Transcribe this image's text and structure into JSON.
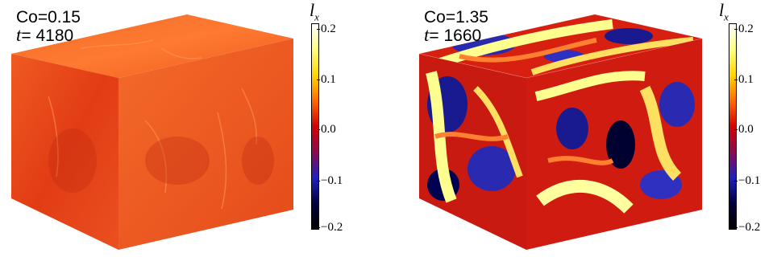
{
  "panels": [
    {
      "co_label": "Co=0.15",
      "time_var": "t",
      "time_value": "= 4180",
      "colorbar_title": "l",
      "colorbar_sub": "x",
      "ticks": [
        "0.2",
        "0.1",
        "0.0",
        "−0.1",
        "−0.2"
      ]
    },
    {
      "co_label": "Co=1.35",
      "time_var": "t",
      "time_value": "= 1660",
      "colorbar_title": "l",
      "colorbar_sub": "x",
      "ticks": [
        "0.2",
        "0.1",
        "0.0",
        "−0.1",
        "−0.2"
      ]
    }
  ],
  "colormap": [
    "#ffffff",
    "#ffff80",
    "#ffd700",
    "#ff6a00",
    "#d40000",
    "#8b0a50",
    "#2020c0",
    "#000040",
    "#000000"
  ]
}
